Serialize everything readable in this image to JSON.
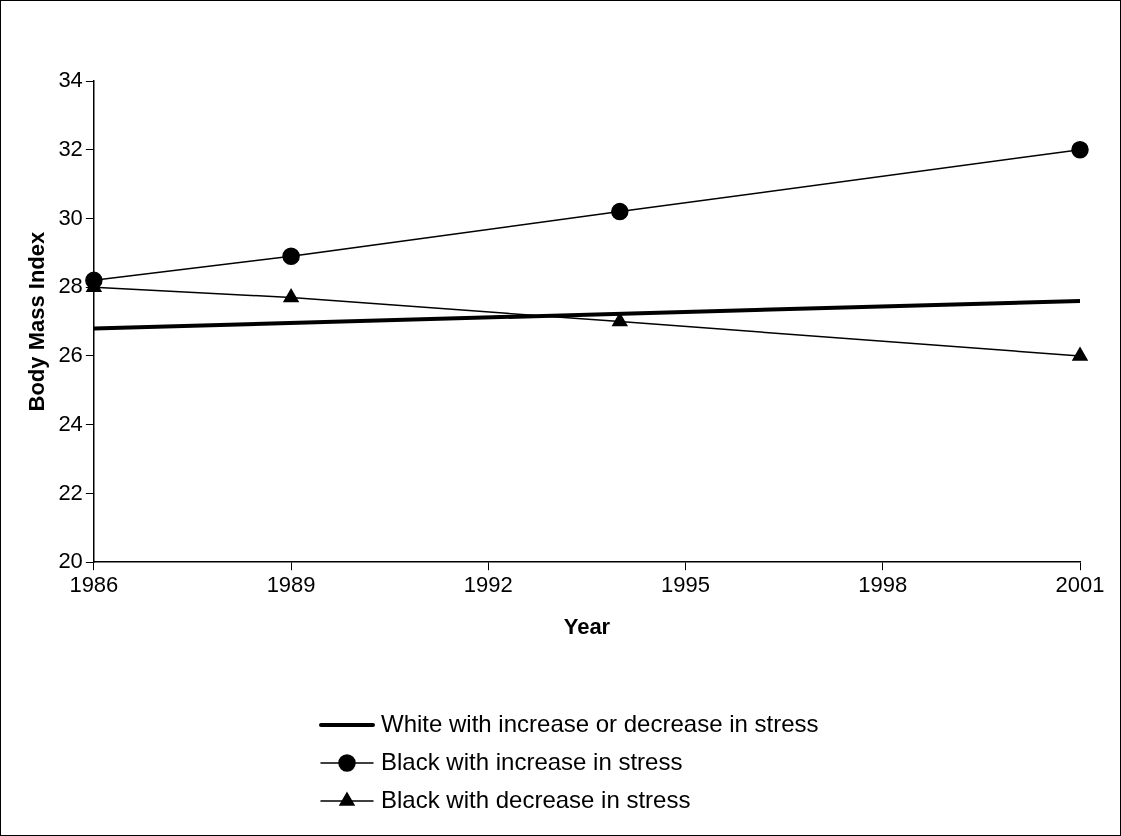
{
  "chart_data": {
    "type": "line",
    "xlabel": "Year",
    "ylabel": "Body Mass Index",
    "xlim": [
      1986,
      2001
    ],
    "xticks": [
      1986,
      1989,
      1992,
      1995,
      1998,
      2001
    ],
    "ylim": [
      20,
      34
    ],
    "yticks": [
      20,
      22,
      24,
      26,
      28,
      30,
      32,
      34
    ],
    "grid": false,
    "legend": "bottom",
    "series": [
      {
        "name": "White with increase or decrease in stress",
        "color": "#000000",
        "x": [
          1986,
          2001
        ],
        "values": [
          26.8,
          27.6
        ],
        "marker": "none"
      },
      {
        "name": "Black with increase in stress",
        "color": "#000000",
        "x": [
          1986,
          1989,
          1994,
          2001
        ],
        "values": [
          28.2,
          28.9,
          30.2,
          32.0
        ],
        "marker": "circle"
      },
      {
        "name": "Black with decrease in stress",
        "color": "#000000",
        "x": [
          1986,
          1989,
          1994,
          2001
        ],
        "values": [
          28.0,
          27.7,
          27.0,
          26.0
        ],
        "marker": "triangle"
      }
    ]
  }
}
